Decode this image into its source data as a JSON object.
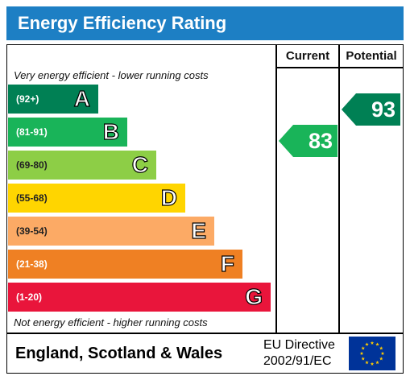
{
  "title": "Energy Efficiency Rating",
  "columns": {
    "current": "Current",
    "potential": "Potential"
  },
  "top_caption": "Very energy efficient - lower running costs",
  "bottom_caption": "Not energy efficient - higher running costs",
  "bands": [
    {
      "range": "(92+)",
      "letter": "A",
      "color": "#008054"
    },
    {
      "range": "(81-91)",
      "letter": "B",
      "color": "#19b459"
    },
    {
      "range": "(69-80)",
      "letter": "C",
      "color": "#8dce46"
    },
    {
      "range": "(55-68)",
      "letter": "D",
      "color": "#ffd500"
    },
    {
      "range": "(39-54)",
      "letter": "E",
      "color": "#fcaa65"
    },
    {
      "range": "(21-38)",
      "letter": "F",
      "color": "#ef8023"
    },
    {
      "range": "(1-20)",
      "letter": "G",
      "color": "#e9153b"
    }
  ],
  "current": {
    "value": "83",
    "band": "B",
    "color": "#19b459"
  },
  "potential": {
    "value": "93",
    "band": "A",
    "color": "#008054"
  },
  "footer": {
    "country": "England, Scotland & Wales",
    "directive_line1": "EU Directive",
    "directive_line2": "2002/91/EC"
  },
  "icons": {
    "eu_flag": "eu-flag-icon"
  },
  "colors": {
    "title_bar": "#1d7fc4",
    "eu_blue": "#003399",
    "eu_star": "#ffcc00"
  }
}
